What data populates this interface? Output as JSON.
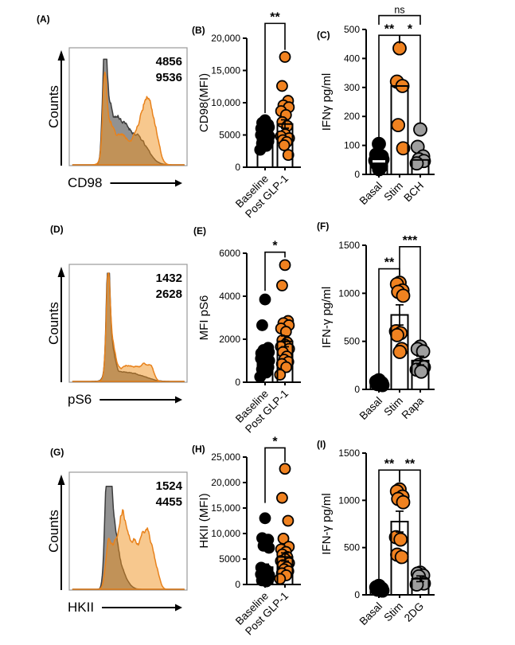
{
  "figure": {
    "kind": "scientific multi-panel flow cytometry / ELISA figure",
    "background": "#ffffff"
  },
  "colors": {
    "orange": "#F08220",
    "orange_stroke": "#E87D1C",
    "black": "#000000",
    "gray_dot": "#9E9E9E",
    "hist_gray_fill": "#7F7F7F",
    "hist_gray_stroke": "#3D3D3D",
    "hist_orange_fill": "#F0921E",
    "hist_orange_stroke": "#E8821C",
    "frame": "#999999"
  },
  "chart_data": [
    {
      "id": "A",
      "type": "flow-histogram",
      "label": "(A)",
      "xlabel": "CD98",
      "ylabel": "Counts",
      "stats": [
        {
          "value": "4856",
          "series": "baseline",
          "color": "black"
        },
        {
          "value": "9536",
          "series": "post",
          "color": "orange"
        }
      ],
      "curves": {
        "gray": {
          "seed": 11,
          "amp": 0.8,
          "comps": [
            [
              0.3,
              0.016,
              1.0
            ],
            [
              0.325,
              0.03,
              0.55
            ],
            [
              0.4,
              0.05,
              0.38
            ],
            [
              0.5,
              0.07,
              0.3
            ],
            [
              0.62,
              0.07,
              0.18
            ]
          ]
        },
        "orange": {
          "seed": 12,
          "amp": 0.8,
          "comps": [
            [
              0.3,
              0.016,
              0.8
            ],
            [
              0.34,
              0.04,
              0.42
            ],
            [
              0.45,
              0.06,
              0.3
            ],
            [
              0.6,
              0.05,
              0.38
            ],
            [
              0.66,
              0.035,
              0.45
            ],
            [
              0.72,
              0.04,
              0.38
            ]
          ]
        }
      }
    },
    {
      "id": "B",
      "type": "dot-plot",
      "label": "(B)",
      "ylabel": "CD98(MFI)",
      "ylim": [
        0,
        20000
      ],
      "yticks": [
        {
          "v": 0,
          "l": "0"
        },
        {
          "v": 5000,
          "l": "5000"
        },
        {
          "v": 10000,
          "l": "10,000"
        },
        {
          "v": 15000,
          "l": "15,000"
        },
        {
          "v": 20000,
          "l": "20,000"
        }
      ],
      "groups": [
        {
          "label": "Baseline",
          "color": "black",
          "bar": 4900,
          "err": 350,
          "dots": [
            7300,
            6900,
            6600,
            6400,
            6200,
            6000,
            5800,
            5600,
            5400,
            5200,
            5000,
            4800,
            4600,
            4400,
            4200,
            4000,
            3700,
            3300,
            2700
          ]
        },
        {
          "label": "Post GLP-1",
          "color": "orange",
          "bar": 6700,
          "err": 650,
          "dots": [
            17100,
            12600,
            10300,
            9600,
            9300,
            8700,
            8100,
            7000,
            6400,
            5100,
            4800,
            4500,
            4200,
            3900,
            3400,
            1900
          ]
        }
      ],
      "sig": [
        {
          "label": "**",
          "a": 0,
          "b": 1,
          "y": 22300,
          "da": 8400,
          "db": 18200
        }
      ]
    },
    {
      "id": "C",
      "type": "dot-plot",
      "label": "(C)",
      "ylabel": "IFNγ pg/ml",
      "ylim": [
        0,
        500
      ],
      "yticks": [
        {
          "v": 0,
          "l": "0"
        },
        {
          "v": 100,
          "l": "100"
        },
        {
          "v": 200,
          "l": "200"
        },
        {
          "v": 300,
          "l": "300"
        },
        {
          "v": 400,
          "l": "400"
        },
        {
          "v": 500,
          "l": "500"
        }
      ],
      "groups": [
        {
          "label": "Basal",
          "color": "black",
          "bar": 45,
          "err": 0,
          "dash": 45,
          "dots": [
            105,
            68,
            62,
            57,
            52,
            48,
            44,
            38,
            28,
            18
          ]
        },
        {
          "label": "Stim",
          "color": "orange",
          "bar": 305,
          "err": 0,
          "dots": [
            435,
            320,
            305,
            170,
            90
          ]
        },
        {
          "label": "BCH",
          "color": "gray",
          "bar": 50,
          "err": 0,
          "dots": [
            155,
            95,
            62,
            52,
            46,
            38
          ]
        }
      ],
      "sig": [
        {
          "label": "**",
          "a": 0,
          "b": 1,
          "y": 480,
          "da": 125,
          "db": 452
        },
        {
          "label": "*",
          "a": 1,
          "b": 2,
          "y": 480,
          "da": 452,
          "db": 178
        },
        {
          "label": "ns",
          "a": 0,
          "b": 2,
          "y": 548,
          "da": 516,
          "db": 516
        }
      ]
    },
    {
      "id": "D",
      "type": "flow-histogram",
      "label": "(D)",
      "xlabel": "pS6",
      "ylabel": "Counts",
      "stats": [
        {
          "value": "1432",
          "series": "baseline",
          "color": "black"
        },
        {
          "value": "2628",
          "series": "post",
          "color": "orange"
        }
      ],
      "curves": {
        "gray": {
          "seed": 21,
          "amp": 0.82,
          "comps": [
            [
              0.33,
              0.015,
              1.0
            ],
            [
              0.35,
              0.03,
              0.4
            ],
            [
              0.45,
              0.08,
              0.09
            ],
            [
              0.6,
              0.08,
              0.05
            ]
          ]
        },
        "orange": {
          "seed": 22,
          "amp": 0.82,
          "comps": [
            [
              0.33,
              0.016,
              0.93
            ],
            [
              0.36,
              0.035,
              0.4
            ],
            [
              0.47,
              0.04,
              0.14
            ],
            [
              0.56,
              0.05,
              0.13
            ],
            [
              0.645,
              0.035,
              0.15
            ],
            [
              0.7,
              0.025,
              0.1
            ]
          ]
        }
      }
    },
    {
      "id": "E",
      "type": "dot-plot",
      "label": "(E)",
      "ylabel": "MFI pS6",
      "ylim": [
        0,
        6000
      ],
      "yticks": [
        {
          "v": 0,
          "l": "0"
        },
        {
          "v": 2000,
          "l": "2000"
        },
        {
          "v": 4000,
          "l": "4000"
        },
        {
          "v": 6000,
          "l": "6000"
        }
      ],
      "groups": [
        {
          "label": "Baseline",
          "color": "black",
          "bar": 1300,
          "err": 180,
          "dots": [
            3850,
            2650,
            1600,
            1500,
            1400,
            1350,
            1300,
            1250,
            1200,
            1150,
            1100,
            1000,
            950,
            900,
            800,
            700,
            600,
            450,
            250
          ]
        },
        {
          "label": "Post GLP-1",
          "color": "orange",
          "bar": 1900,
          "err": 250,
          "dots": [
            5450,
            4500,
            2850,
            2750,
            2650,
            2500,
            2350,
            1950,
            1850,
            1750,
            1650,
            1550,
            1400,
            1200,
            1050,
            950,
            850,
            700,
            350
          ]
        }
      ],
      "sig": [
        {
          "label": "*",
          "a": 0,
          "b": 1,
          "y": 6050,
          "da": 4250,
          "db": 5800
        }
      ]
    },
    {
      "id": "F",
      "type": "dot-plot",
      "label": "(F)",
      "ylabel": "IFN-γ pg/ml",
      "ylim": [
        0,
        1500
      ],
      "yticks": [
        {
          "v": 0,
          "l": "0"
        },
        {
          "v": 500,
          "l": "500"
        },
        {
          "v": 1000,
          "l": "1000"
        },
        {
          "v": 1500,
          "l": "1500"
        }
      ],
      "groups": [
        {
          "label": "Basal",
          "color": "black",
          "bar": 65,
          "err": 15,
          "dots": [
            95,
            80,
            65,
            55,
            45
          ]
        },
        {
          "label": "Stim",
          "color": "orange",
          "bar": 775,
          "err": 105,
          "dots": [
            1110,
            1095,
            1030,
            1015,
            975,
            605,
            585,
            565,
            420,
            390
          ]
        },
        {
          "label": "Rapa",
          "color": "gray",
          "bar": 300,
          "err": 45,
          "dots": [
            445,
            420,
            395,
            255,
            230,
            205,
            185
          ]
        }
      ],
      "sig": [
        {
          "label": "**",
          "a": 0,
          "b": 1,
          "y": 1255,
          "da": 105,
          "db": 1185
        },
        {
          "label": "***",
          "a": 1,
          "b": 2,
          "y": 1485,
          "da": 1185,
          "db": 505
        }
      ]
    },
    {
      "id": "G",
      "type": "flow-histogram",
      "label": "(G)",
      "xlabel": "HKII",
      "ylabel": "Counts",
      "stats": [
        {
          "value": "1524",
          "series": "baseline",
          "color": "black"
        },
        {
          "value": "4455",
          "series": "post",
          "color": "orange"
        }
      ],
      "curves": {
        "gray": {
          "seed": 31,
          "amp": 0.78,
          "comps": [
            [
              0.315,
              0.018,
              0.92
            ],
            [
              0.345,
              0.016,
              1.0
            ],
            [
              0.375,
              0.035,
              0.55
            ],
            [
              0.44,
              0.05,
              0.18
            ]
          ]
        },
        "orange": {
          "seed": 32,
          "amp": 0.78,
          "comps": [
            [
              0.335,
              0.025,
              0.48
            ],
            [
              0.4,
              0.03,
              0.5
            ],
            [
              0.455,
              0.025,
              0.58
            ],
            [
              0.51,
              0.04,
              0.45
            ],
            [
              0.575,
              0.035,
              0.38
            ],
            [
              0.635,
              0.03,
              0.44
            ],
            [
              0.68,
              0.025,
              0.42
            ],
            [
              0.73,
              0.03,
              0.25
            ]
          ]
        }
      }
    },
    {
      "id": "H",
      "type": "dot-plot",
      "label": "(H)",
      "ylabel": "HKII (MFI)",
      "ylim": [
        0,
        25000
      ],
      "yticks": [
        {
          "v": 0,
          "l": "0"
        },
        {
          "v": 5000,
          "l": "5000"
        },
        {
          "v": 10000,
          "l": "10,000"
        },
        {
          "v": 15000,
          "l": "15,000"
        },
        {
          "v": 20000,
          "l": "20,000"
        },
        {
          "v": 25000,
          "l": "25,000"
        }
      ],
      "groups": [
        {
          "label": "Baseline",
          "color": "black",
          "bar": 3400,
          "err": 600,
          "dots": [
            13000,
            9100,
            8800,
            7600,
            7200,
            3300,
            2900,
            2600,
            2400,
            2200,
            2000,
            1800,
            1600,
            1400,
            1200,
            1000,
            800,
            600
          ]
        },
        {
          "label": "Post GLP-1",
          "color": "orange",
          "bar": 5400,
          "err": 800,
          "dots": [
            22700,
            17000,
            12500,
            9000,
            7400,
            6900,
            6400,
            5900,
            5400,
            5000,
            4600,
            4200,
            3800,
            3400,
            3000,
            2600,
            2200,
            1800,
            1100
          ]
        }
      ],
      "sig": [
        {
          "label": "*",
          "a": 0,
          "b": 1,
          "y": 26800,
          "da": 16000,
          "db": 24000
        }
      ]
    },
    {
      "id": "I",
      "type": "dot-plot",
      "label": "(I)",
      "ylabel": "IFN-γ pg/ml",
      "ylim": [
        0,
        1500
      ],
      "yticks": [
        {
          "v": 0,
          "l": "0"
        },
        {
          "v": 500,
          "l": "500"
        },
        {
          "v": 1000,
          "l": "1000"
        },
        {
          "v": 1500,
          "l": "1500"
        }
      ],
      "groups": [
        {
          "label": "Basal",
          "color": "black",
          "bar": 65,
          "err": 15,
          "dots": [
            95,
            80,
            65,
            55,
            45
          ]
        },
        {
          "label": "Stim",
          "color": "orange",
          "bar": 775,
          "err": 110,
          "dots": [
            1115,
            1095,
            1040,
            1015,
            980,
            610,
            585,
            425,
            400
          ]
        },
        {
          "label": "2DG",
          "color": "gray",
          "bar": 170,
          "err": 30,
          "dots": [
            235,
            225,
            205,
            195,
            120,
            110
          ]
        }
      ],
      "sig": [
        {
          "label": "**",
          "a": 0,
          "b": 1,
          "y": 1320,
          "da": 110,
          "db": 1195
        },
        {
          "label": "**",
          "a": 1,
          "b": 2,
          "y": 1320,
          "da": 1195,
          "db": 310
        }
      ]
    }
  ]
}
